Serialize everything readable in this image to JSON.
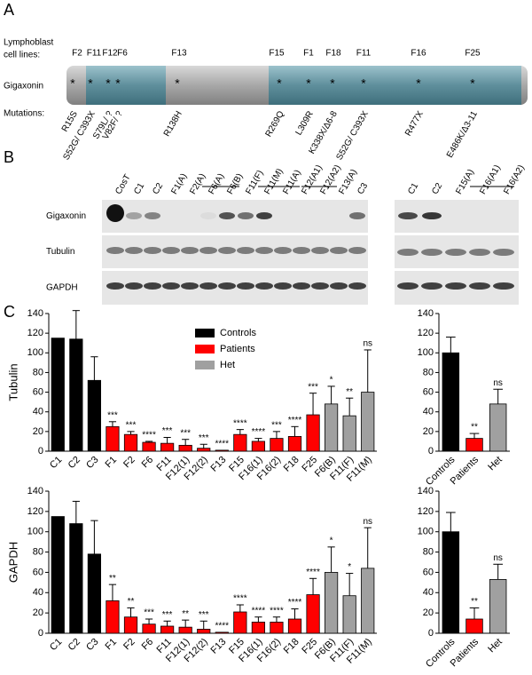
{
  "panel_a": {
    "label": "A",
    "cell_lines_label": [
      "Lymphoblast",
      "cell lines:"
    ],
    "protein_label": "Gigaxonin",
    "mutations_label": "Mutations:",
    "cell_lines": [
      "F2",
      "F11",
      "F12",
      "F6",
      "F13",
      "F15",
      "F1",
      "F18",
      "F11",
      "F16",
      "F25"
    ],
    "mutations": [
      "R15S",
      "S52G/ C393X",
      "S79L/ ?",
      "V82F/ ?",
      "R138H",
      "R269Q",
      "L309R",
      "K338X/Δ6-8",
      "S52G/ C393X",
      "R477X",
      "E486K/Δ3-11"
    ]
  },
  "panel_b": {
    "label": "B",
    "rows": [
      "Gigaxonin",
      "Tubulin",
      "GAPDH"
    ],
    "lanes_left": [
      "CosT",
      "C1",
      "C2",
      "F1(A)",
      "F2(A)",
      "F6(A)",
      "F6(B)",
      "F11(F)",
      "F11(M)",
      "F11(A)",
      "F12(A1)",
      "F12(A2)",
      "F13(A)",
      "C3"
    ],
    "lanes_right": [
      "C1",
      "C2",
      "F15(A)",
      "F16(A1)",
      "F16(A2)"
    ]
  },
  "panel_c": {
    "label": "C"
  },
  "chart_data": [
    {
      "type": "bar",
      "ylabel": "Tubulin",
      "legend": "upper center",
      "categories": [
        "C1",
        "C2",
        "C3",
        "F1",
        "F2",
        "F6",
        "F11",
        "F12(1)",
        "F12(2)",
        "F13",
        "F15",
        "F16(1)",
        "F16(2)",
        "F18",
        "F25",
        "F6(B)",
        "F11(F)",
        "F11(M)"
      ],
      "series": [
        {
          "name": "Controls",
          "color": "#000000",
          "values": [
            115,
            114,
            72,
            null,
            null,
            null,
            null,
            null,
            null,
            null,
            null,
            null,
            null,
            null,
            null,
            null,
            null,
            null
          ]
        },
        {
          "name": "Patients",
          "color": "#ff0000",
          "values": [
            null,
            null,
            null,
            25,
            17,
            9,
            8,
            6,
            3,
            1,
            17,
            10,
            13,
            15,
            37,
            null,
            null,
            null
          ]
        },
        {
          "name": "Het",
          "color": "#a0a0a0",
          "values": [
            null,
            null,
            null,
            null,
            null,
            null,
            null,
            null,
            null,
            null,
            null,
            null,
            null,
            null,
            null,
            48,
            36,
            60
          ]
        }
      ],
      "errors": [
        null,
        29,
        24,
        5,
        3,
        1,
        6,
        6,
        4,
        null,
        5,
        3,
        7,
        10,
        22,
        18,
        18,
        43
      ],
      "annotations": [
        null,
        null,
        null,
        "***",
        "***",
        "****",
        "***",
        "***",
        "***",
        "****",
        "****",
        "****",
        "***",
        "****",
        "***",
        "*",
        "**",
        "ns"
      ],
      "ylim": [
        0,
        140
      ],
      "yticks": [
        0,
        20,
        40,
        60,
        80,
        100,
        120,
        140
      ]
    },
    {
      "type": "bar",
      "ylabel": "GAPDH",
      "categories": [
        "C1",
        "C2",
        "C3",
        "F1",
        "F2",
        "F6",
        "F11",
        "F12(1)",
        "F12(2)",
        "F13",
        "F15",
        "F16(1)",
        "F16(2)",
        "F18",
        "F25",
        "F6(B)",
        "F11(F)",
        "F11(M)"
      ],
      "series": [
        {
          "color": "#000000",
          "values": [
            115,
            108,
            78,
            null,
            null,
            null,
            null,
            null,
            null,
            null,
            null,
            null,
            null,
            null,
            null,
            null,
            null,
            null
          ]
        },
        {
          "color": "#ff0000",
          "values": [
            null,
            null,
            null,
            32,
            16,
            9,
            7,
            6,
            4,
            1,
            21,
            11,
            11,
            14,
            38,
            null,
            null,
            null
          ]
        },
        {
          "color": "#a0a0a0",
          "values": [
            null,
            null,
            null,
            null,
            null,
            null,
            null,
            null,
            null,
            null,
            null,
            null,
            null,
            null,
            null,
            60,
            37,
            64
          ]
        }
      ],
      "errors": [
        null,
        22,
        33,
        16,
        9,
        5,
        5,
        7,
        8,
        null,
        7,
        5,
        5,
        10,
        16,
        25,
        22,
        40
      ],
      "annotations": [
        null,
        null,
        null,
        "**",
        "**",
        "***",
        "***",
        "**",
        "***",
        "****",
        "****",
        "****",
        "****",
        "****",
        "****",
        "*",
        "*",
        "ns"
      ],
      "ylim": [
        0,
        140
      ],
      "yticks": [
        0,
        20,
        40,
        60,
        80,
        100,
        120,
        140
      ]
    },
    {
      "type": "bar",
      "categories": [
        "Controls",
        "Patients",
        "Het"
      ],
      "series": [
        {
          "color": "#000000",
          "values": [
            100,
            null,
            null
          ]
        },
        {
          "color": "#ff0000",
          "values": [
            null,
            13,
            null
          ]
        },
        {
          "color": "#a0a0a0",
          "values": [
            null,
            null,
            48
          ]
        }
      ],
      "errors": [
        16,
        5,
        15
      ],
      "annotations": [
        null,
        "**",
        "ns"
      ],
      "ylim": [
        0,
        140
      ],
      "yticks": [
        0,
        20,
        40,
        60,
        80,
        100,
        120,
        140
      ]
    },
    {
      "type": "bar",
      "categories": [
        "Controls",
        "Patients",
        "Het"
      ],
      "series": [
        {
          "color": "#000000",
          "values": [
            100,
            null,
            null
          ]
        },
        {
          "color": "#ff0000",
          "values": [
            null,
            14,
            null
          ]
        },
        {
          "color": "#a0a0a0",
          "values": [
            null,
            null,
            53
          ]
        }
      ],
      "errors": [
        19,
        11,
        15
      ],
      "annotations": [
        null,
        "**",
        "ns"
      ],
      "ylim": [
        0,
        140
      ],
      "yticks": [
        0,
        20,
        40,
        60,
        80,
        100,
        120,
        140
      ]
    }
  ]
}
